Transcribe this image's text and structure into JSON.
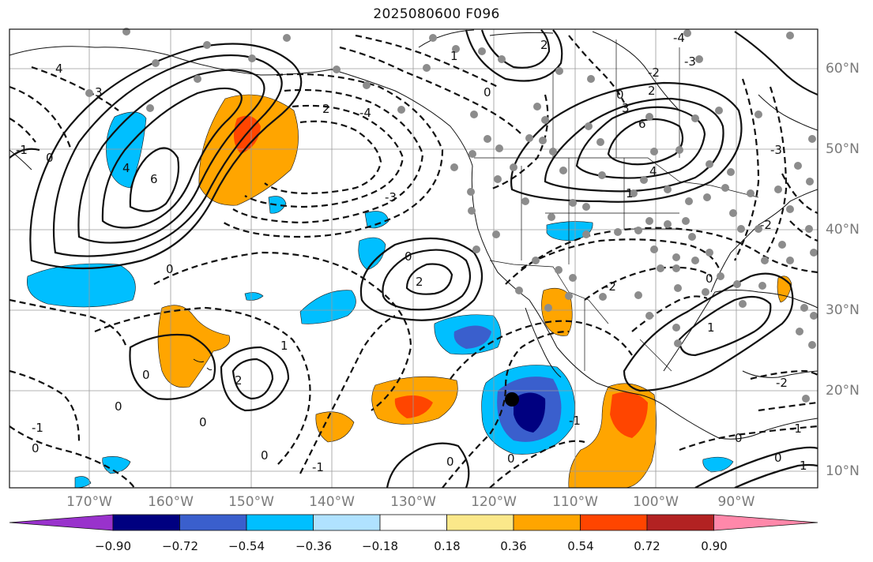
{
  "title": "2025080600 F096",
  "map": {
    "lon_labels": [
      "170°W",
      "160°W",
      "150°W",
      "140°W",
      "130°W",
      "120°W",
      "110°W",
      "100°W",
      "90°W"
    ],
    "lat_labels": [
      "60°N",
      "50°N",
      "40°N",
      "30°N",
      "20°N",
      "10°N"
    ],
    "contour_labels": [
      "4",
      "3",
      "2",
      "1",
      "0",
      "-1",
      "-2",
      "-3",
      "-4",
      "6"
    ],
    "colors": {
      "land_lines": "#111111",
      "grid": "#9a9a9a",
      "station_dots": "#8c8c8c",
      "pos_1": "#fbe88a",
      "pos_2": "#ffa500",
      "pos_3": "#ff4500",
      "neg_1": "#b0e2ff",
      "neg_2": "#00bfff",
      "neg_3": "#3a5fcd",
      "neg_4": "#000080"
    }
  },
  "colorbar": {
    "ticks": [
      "−0.90",
      "−0.72",
      "−0.54",
      "−0.36",
      "−0.18",
      "0.18",
      "0.36",
      "0.54",
      "0.72",
      "0.90"
    ],
    "colors": [
      "#9932cc",
      "#000080",
      "#3a5fcd",
      "#00bfff",
      "#b0e2ff",
      "#ffffff",
      "#fbe88a",
      "#ffa500",
      "#ff4500",
      "#b22222",
      "#ff88aa"
    ]
  }
}
